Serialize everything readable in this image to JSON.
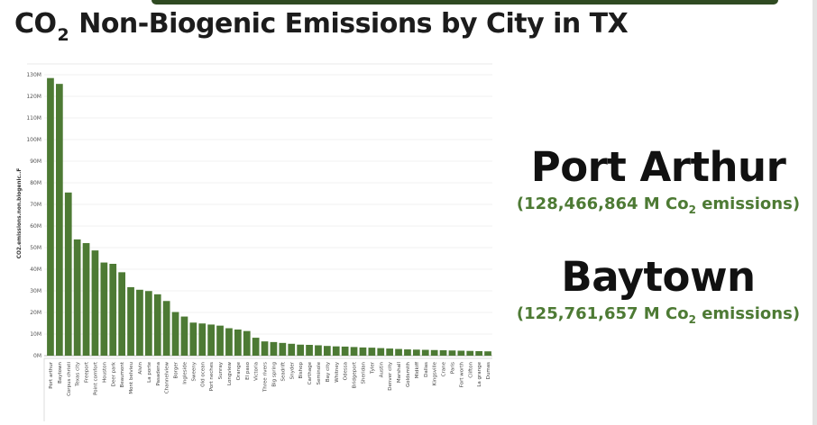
{
  "title": {
    "pre": "CO",
    "sub": "2",
    "post": " Non-Biogenic Emissions by City in TX"
  },
  "callouts": [
    {
      "city": "Port Arthur",
      "amount_pre": "(128,466,864 M Co",
      "amount_sub": "2",
      "amount_post": " emissions)"
    },
    {
      "city": "Baytown",
      "amount_pre": "(125,761,657 M Co",
      "amount_sub": "2",
      "amount_post": " emissions)"
    }
  ],
  "colors": {
    "bar": "#4d7a34",
    "band": "#2f4a22",
    "callout": "#4d7a34"
  },
  "chart_data": {
    "type": "bar",
    "ylabel": "CO2.emissions.non.biogenic..F",
    "ylim": [
      0,
      130000000
    ],
    "yticks": [
      "0M",
      "10M",
      "20M",
      "30M",
      "40M",
      "50M",
      "60M",
      "70M",
      "80M",
      "90M",
      "100M",
      "110M",
      "120M",
      "130M"
    ],
    "grid": true,
    "categories": [
      "Port arthur",
      "Baytown",
      "Corpus christi",
      "Texas city",
      "Freeport",
      "Point comfort",
      "Houston",
      "Deer park",
      "Beaumont",
      "Mont belvieu",
      "Alvin",
      "La porte",
      "Pasadena",
      "Channelview",
      "Borger",
      "Ingleside",
      "Sweeny",
      "Old ocean",
      "Port neches",
      "Sunray",
      "Longview",
      "Orange",
      "El paso",
      "Victoria",
      "Three rivers",
      "Big spring",
      "Seadrift",
      "Snyder",
      "Bishop",
      "Carthage",
      "Seminole",
      "Bay city",
      "Whitney",
      "Odessa",
      "Bridgeport",
      "Sheridan",
      "Tyler",
      "Austin",
      "Denver city",
      "Marshall",
      "Goldsmith",
      "Midkiff",
      "Dallas",
      "Kingsville",
      "Crane",
      "Paris",
      "Fort worth",
      "Clifton",
      "La grange",
      "Dumas"
    ],
    "values": [
      128466864,
      125761657,
      75500000,
      53800000,
      52100000,
      48700000,
      43100000,
      42500000,
      38600000,
      31700000,
      30500000,
      29900000,
      28400000,
      25300000,
      20200000,
      18100000,
      15300000,
      14900000,
      14400000,
      13900000,
      12700000,
      12100000,
      11400000,
      8300000,
      6600000,
      6300000,
      5900000,
      5500000,
      5100000,
      5000000,
      4800000,
      4500000,
      4300000,
      4200000,
      4000000,
      3800000,
      3700000,
      3500000,
      3300000,
      3100000,
      2900000,
      2800000,
      2700000,
      2600000,
      2500000,
      2400000,
      2300000,
      2200000,
      2100000,
      2000000
    ]
  }
}
